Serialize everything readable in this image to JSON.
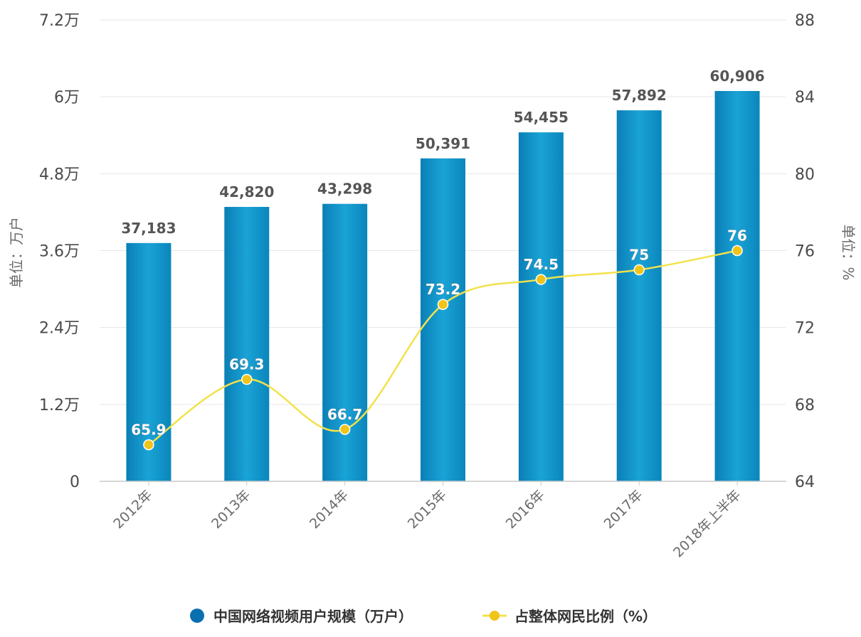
{
  "chart_data": {
    "type": "bar+line",
    "categories": [
      "2012年",
      "2013年",
      "2014年",
      "2015年",
      "2016年",
      "2017年",
      "2018年上半年"
    ],
    "series": [
      {
        "name": "中国网络视频用户规模（万户）",
        "type": "bar",
        "axis": "left",
        "values": [
          37183,
          42820,
          43298,
          50391,
          54455,
          57892,
          60906
        ],
        "value_labels": [
          "37,183",
          "42,820",
          "43,298",
          "50,391",
          "54,455",
          "57,892",
          "60,906"
        ]
      },
      {
        "name": "占整体网民比例（%）",
        "type": "line",
        "axis": "right",
        "values": [
          65.9,
          69.3,
          66.7,
          73.2,
          74.5,
          75,
          76
        ],
        "value_labels": [
          "65.9",
          "69.3",
          "66.7",
          "73.2",
          "74.5",
          "75",
          "76"
        ]
      }
    ],
    "left_axis": {
      "title": "单位：万户",
      "range": [
        0,
        72000
      ],
      "ticks": [
        0,
        12000,
        24000,
        36000,
        48000,
        60000,
        72000
      ],
      "tick_labels": [
        "0",
        "1.2万",
        "2.4万",
        "3.6万",
        "4.8万",
        "6万",
        "7.2万"
      ]
    },
    "right_axis": {
      "title": "单位：%",
      "range": [
        64,
        88
      ],
      "ticks": [
        64,
        68,
        72,
        76,
        80,
        84,
        88
      ],
      "tick_labels": [
        "64",
        "68",
        "72",
        "76",
        "80",
        "84",
        "88"
      ]
    },
    "grid": true,
    "legend_position": "bottom",
    "colors": {
      "bar": "#0a8fc2",
      "bar_light": "#1aa9dc",
      "line": "#f2e24a",
      "point": "#f0c419",
      "grid": "#e6e6e6",
      "axis": "#c8c8c8"
    }
  },
  "legend": {
    "bar_label": "中国网络视频用户规模（万户）",
    "line_label": "占整体网民比例（%）"
  }
}
